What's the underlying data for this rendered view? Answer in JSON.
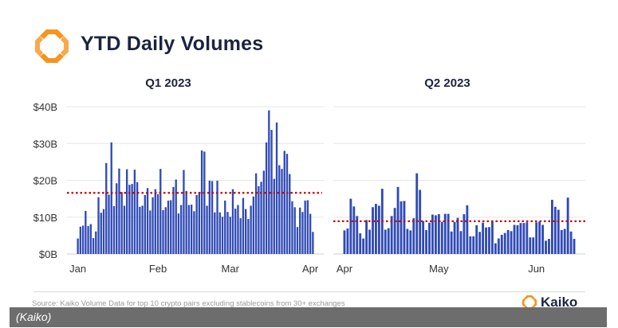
{
  "header": {
    "title": "YTD Daily Volumes"
  },
  "brand": {
    "name": "Kaiko",
    "logo_color": "#F7931E"
  },
  "source": "Source: Kaiko Volume Data for top 10 crypto pairs excluding stablecoins from 30+ exchanges",
  "credit": "(Kaiko)",
  "colors": {
    "bar": "#2f4ab5",
    "average_line": "#cc0000",
    "grid": "#e6e6e6"
  },
  "chart_data": [
    {
      "type": "bar",
      "title": "Q1 2023",
      "ylim": [
        0,
        40
      ],
      "y_ticks": [
        {
          "value": 0,
          "label": "$0B"
        },
        {
          "value": 10,
          "label": "$10B"
        },
        {
          "value": 20,
          "label": "$20B"
        },
        {
          "value": 30,
          "label": "$30B"
        },
        {
          "value": 40,
          "label": "$40B"
        }
      ],
      "x_ticks": [
        {
          "index": 0,
          "label": "Jan"
        },
        {
          "index": 31,
          "label": "Feb"
        },
        {
          "index": 59,
          "label": "Mar"
        },
        {
          "index": 90,
          "label": "Apr"
        }
      ],
      "average": 16.6,
      "unit": "$B",
      "values": [
        4.2,
        7.4,
        7.7,
        11.7,
        7.6,
        8.1,
        4.3,
        6.1,
        15.4,
        11.2,
        12.2,
        24.7,
        16.1,
        30.3,
        13.0,
        19.2,
        23.2,
        16.8,
        13.1,
        23.0,
        18.8,
        19.0,
        22.9,
        19.5,
        12.8,
        13.1,
        16.0,
        17.9,
        11.8,
        15.4,
        17.6,
        16.2,
        23.1,
        11.9,
        12.7,
        14.5,
        14.6,
        18.2,
        20.2,
        11.0,
        13.3,
        22.8,
        17.1,
        13.3,
        13.4,
        11.6,
        16.0,
        16.8,
        28.1,
        27.8,
        13.1,
        19.9,
        19.8,
        11.3,
        19.9,
        11.3,
        10.1,
        14.5,
        11.4,
        10.1,
        17.6,
        12.3,
        13.3,
        9.7,
        15.2,
        12.2,
        9.5,
        13.1,
        15.6,
        21.9,
        18.4,
        19.6,
        22.6,
        30.3,
        39.0,
        33.7,
        20.4,
        35.7,
        24.1,
        23.1,
        28.0,
        27.2,
        21.7,
        14.3,
        12.7,
        7.3,
        12.6,
        11.4,
        14.5,
        14.6,
        10.9,
        6.0
      ]
    },
    {
      "type": "bar",
      "title": "Q2 2023",
      "ylim": [
        0,
        40
      ],
      "x_ticks": [
        {
          "index": 0,
          "label": "Apr"
        },
        {
          "index": 30,
          "label": "May"
        },
        {
          "index": 61,
          "label": "Jun"
        }
      ],
      "average": 8.9,
      "unit": "$B",
      "values": [
        6.4,
        6.9,
        15.0,
        12.9,
        10.3,
        5.6,
        4.2,
        9.2,
        6.6,
        12.7,
        13.6,
        13.1,
        17.7,
        6.6,
        7.0,
        10.3,
        12.5,
        18.2,
        14.3,
        14.4,
        6.8,
        6.4,
        9.7,
        21.9,
        17.4,
        8.9,
        6.5,
        8.5,
        10.7,
        10.5,
        10.8,
        8.7,
        10.9,
        10.9,
        6.1,
        8.7,
        9.8,
        6.2,
        10.8,
        13.2,
        4.8,
        4.8,
        7.8,
        6.0,
        8.5,
        7.2,
        7.3,
        8.7,
        2.9,
        4.2,
        5.2,
        5.7,
        6.5,
        6.2,
        7.9,
        7.8,
        8.4,
        8.4,
        8.6,
        4.5,
        4.5,
        8.6,
        8.8,
        7.9,
        3.6,
        4.1,
        14.7,
        12.8,
        12.0,
        6.5,
        6.8,
        15.3,
        6.1,
        4.1
      ]
    }
  ]
}
